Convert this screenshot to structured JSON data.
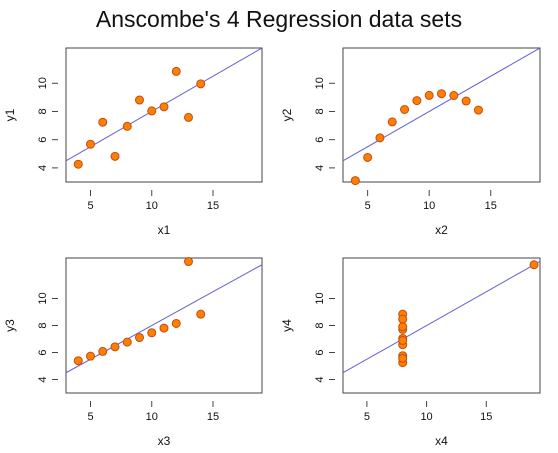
{
  "title": "Anscombe's 4 Regression data sets",
  "colors": {
    "point_fill": "#ff7f00",
    "point_stroke": "#c24d12",
    "regression_line": "#6060d0",
    "axis": "#444444"
  },
  "chart_data": [
    {
      "type": "scatter",
      "xlabel": "x1",
      "ylabel": "y1",
      "xlim": [
        3,
        19
      ],
      "ylim": [
        3,
        12.5
      ],
      "xticks": [
        5,
        10,
        15
      ],
      "yticks": [
        4,
        6,
        8,
        10
      ],
      "regression": {
        "intercept": 3.0,
        "slope": 0.5
      },
      "x": [
        10,
        8,
        13,
        9,
        11,
        14,
        6,
        4,
        12,
        7,
        5
      ],
      "y": [
        8.04,
        6.95,
        7.58,
        8.81,
        8.33,
        9.96,
        7.24,
        4.26,
        10.84,
        4.82,
        5.68
      ]
    },
    {
      "type": "scatter",
      "xlabel": "x2",
      "ylabel": "y2",
      "xlim": [
        3,
        19
      ],
      "ylim": [
        3,
        12.5
      ],
      "xticks": [
        5,
        10,
        15
      ],
      "yticks": [
        4,
        6,
        8,
        10
      ],
      "regression": {
        "intercept": 3.0,
        "slope": 0.5
      },
      "x": [
        10,
        8,
        13,
        9,
        11,
        14,
        6,
        4,
        12,
        7,
        5
      ],
      "y": [
        9.14,
        8.14,
        8.74,
        8.77,
        9.26,
        8.1,
        6.13,
        3.1,
        9.13,
        7.26,
        4.74
      ]
    },
    {
      "type": "scatter",
      "xlabel": "x3",
      "ylabel": "y3",
      "xlim": [
        3,
        19
      ],
      "ylim": [
        3,
        13
      ],
      "xticks": [
        5,
        10,
        15
      ],
      "yticks": [
        4,
        6,
        8,
        10
      ],
      "regression": {
        "intercept": 3.0,
        "slope": 0.5
      },
      "x": [
        10,
        8,
        13,
        9,
        11,
        14,
        6,
        4,
        12,
        7,
        5
      ],
      "y": [
        7.46,
        6.77,
        12.74,
        7.11,
        7.81,
        8.84,
        6.08,
        5.39,
        8.15,
        6.42,
        5.73
      ]
    },
    {
      "type": "scatter",
      "xlabel": "x4",
      "ylabel": "y4",
      "xlim": [
        3,
        19.5
      ],
      "ylim": [
        3,
        13
      ],
      "xticks": [
        5,
        10,
        15
      ],
      "yticks": [
        4,
        6,
        8,
        10
      ],
      "regression": {
        "intercept": 3.0,
        "slope": 0.5
      },
      "x": [
        8,
        8,
        8,
        8,
        8,
        8,
        8,
        19,
        8,
        8,
        8
      ],
      "y": [
        6.58,
        5.76,
        7.71,
        8.84,
        8.47,
        7.04,
        5.25,
        12.5,
        5.56,
        7.91,
        6.89
      ]
    }
  ]
}
